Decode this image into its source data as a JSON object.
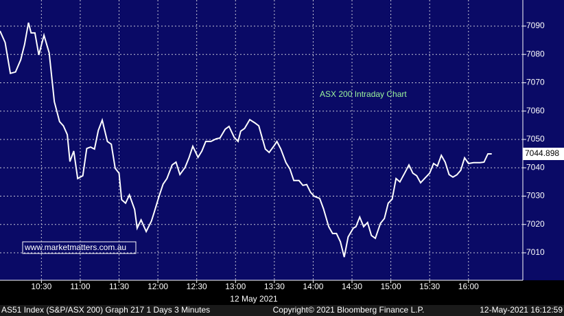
{
  "chart_data": {
    "type": "line",
    "annotation": "ASX 200 Intraday Chart",
    "source": "www.marketmatters.com.au",
    "date_label": "12 May 2021",
    "footer_left": "AS51 Index (S&P/ASX 200) Graph 217 1 Days 3 Minutes",
    "footer_center": "Copyright© 2021 Bloomberg Finance L.P.",
    "footer_right": "12-May-2021 16:12:59",
    "last_price": 7044.898,
    "grid": true,
    "xlim": [
      "09:58",
      "16:42"
    ],
    "xticks": [
      "10:30",
      "11:00",
      "11:30",
      "12:00",
      "12:30",
      "13:00",
      "13:30",
      "14:00",
      "14:30",
      "15:00",
      "15:30",
      "16:00"
    ],
    "ylim": [
      7000.3,
      7099.2
    ],
    "yticks": [
      7010,
      7020,
      7030,
      7040,
      7050,
      7060,
      7070,
      7080,
      7090
    ],
    "x": [
      "09:58",
      "10:02",
      "10:06",
      "10:10",
      "10:14",
      "10:17",
      "10:20",
      "10:22",
      "10:25",
      "10:28",
      "10:32",
      "10:36",
      "10:40",
      "10:44",
      "10:47",
      "10:50",
      "10:52",
      "10:55",
      "10:58",
      "11:02",
      "11:05",
      "11:08",
      "11:11",
      "11:14",
      "11:17",
      "11:21",
      "11:24",
      "11:27",
      "11:30",
      "11:32",
      "11:35",
      "11:38",
      "11:42",
      "11:44",
      "11:47",
      "11:51",
      "11:55",
      "11:57",
      "12:01",
      "12:04",
      "12:07",
      "12:11",
      "12:14",
      "12:17",
      "12:21",
      "12:24",
      "12:27",
      "12:31",
      "12:34",
      "12:37",
      "12:41",
      "12:45",
      "12:48",
      "12:52",
      "12:55",
      "12:59",
      "13:02",
      "13:04",
      "13:07",
      "13:11",
      "13:15",
      "13:18",
      "13:23",
      "13:26",
      "13:30",
      "13:32",
      "13:35",
      "13:39",
      "13:42",
      "13:45",
      "13:49",
      "13:52",
      "13:55",
      "13:58",
      "14:01",
      "14:05",
      "14:08",
      "14:12",
      "14:15",
      "14:18",
      "14:21",
      "14:24",
      "14:27",
      "14:31",
      "14:33",
      "14:36",
      "14:39",
      "14:42",
      "14:45",
      "14:48",
      "14:52",
      "14:55",
      "14:58",
      "15:01",
      "15:04",
      "15:07",
      "15:11",
      "15:14",
      "15:17",
      "15:20",
      "15:23",
      "15:26",
      "15:30",
      "15:33",
      "15:36",
      "15:39",
      "15:42",
      "15:45",
      "15:48",
      "15:51",
      "15:54",
      "15:57",
      "16:00",
      "16:04",
      "16:09",
      "16:12",
      "16:15",
      "16:18"
    ],
    "series": [
      {
        "name": "AS51 Index",
        "color": "#ffffff",
        "values": [
          7088.3,
          7084.2,
          7073.3,
          7073.8,
          7078.1,
          7083.5,
          7091.2,
          7087.6,
          7087.6,
          7079.8,
          7086.8,
          7080.5,
          7063.3,
          7056.3,
          7054.8,
          7051.7,
          7042.2,
          7045.9,
          7036.2,
          7037.2,
          7046.8,
          7047.3,
          7046.6,
          7053.2,
          7056.8,
          7049.3,
          7048.3,
          7039.8,
          7038.1,
          7028.7,
          7027.5,
          7030.4,
          7025.3,
          7018.7,
          7021.6,
          7017.5,
          7021.2,
          7024.1,
          7030.1,
          7034.2,
          7036.2,
          7041.0,
          7042.0,
          7037.6,
          7040.1,
          7043.5,
          7047.6,
          7043.7,
          7045.9,
          7049.3,
          7049.3,
          7050.2,
          7050.5,
          7053.6,
          7054.6,
          7050.7,
          7049.3,
          7052.9,
          7053.9,
          7057.0,
          7055.8,
          7054.8,
          7046.6,
          7045.4,
          7047.9,
          7049.3,
          7046.6,
          7041.8,
          7039.6,
          7035.5,
          7035.5,
          7033.8,
          7034.1,
          7031.3,
          7029.9,
          7029.2,
          7025.5,
          7019.2,
          7016.8,
          7016.8,
          7013.9,
          7008.5,
          7015.6,
          7018.7,
          7019.2,
          7022.6,
          7019.2,
          7020.7,
          7016.1,
          7015.1,
          7020.4,
          7022.1,
          7027.5,
          7028.9,
          7036.2,
          7035.0,
          7038.4,
          7041.0,
          7038.1,
          7037.2,
          7034.7,
          7036.2,
          7038.1,
          7041.5,
          7040.6,
          7044.4,
          7042.0,
          7037.6,
          7036.7,
          7037.5,
          7039.1,
          7043.5,
          7041.5,
          7041.8,
          7041.8,
          7042.0,
          7044.898,
          7044.898
        ]
      }
    ]
  }
}
